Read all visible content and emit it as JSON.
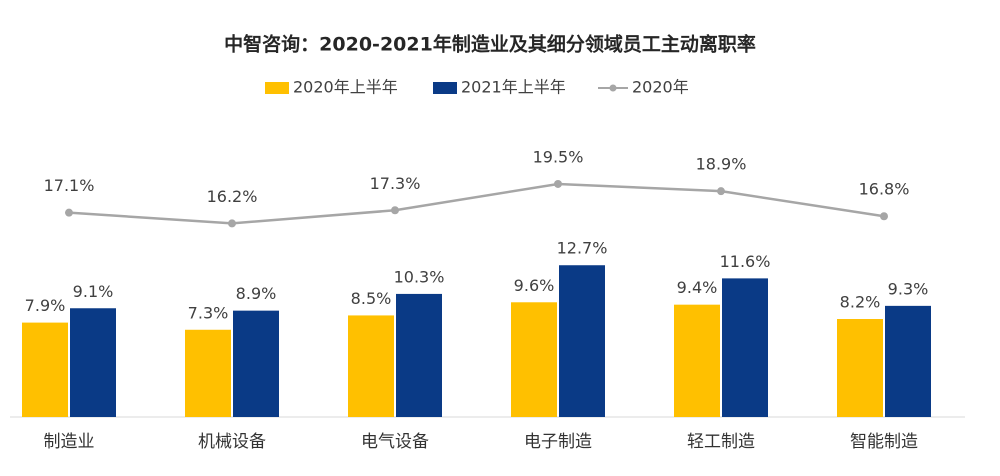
{
  "chart_data": {
    "type": "bar-line",
    "title": "中智咨询：2020-2021年制造业及其细分领域员工主动离职率",
    "categories": [
      "制造业",
      "机械设备",
      "电气设备",
      "电子制造",
      "轻工制造",
      "智能制造"
    ],
    "series": [
      {
        "name": "2020年上半年",
        "type": "bar",
        "color": "#ffc000",
        "values": [
          7.9,
          7.3,
          8.5,
          9.6,
          9.4,
          8.2
        ],
        "value_labels": [
          "7.9%",
          "7.3%",
          "8.5%",
          "9.6%",
          "9.4%",
          "8.2%"
        ]
      },
      {
        "name": "2021年上半年",
        "type": "bar",
        "color": "#0a3a86",
        "values": [
          9.1,
          8.9,
          10.3,
          12.7,
          11.6,
          9.3
        ],
        "value_labels": [
          "9.1%",
          "8.9%",
          "10.3%",
          "12.7%",
          "11.6%",
          "9.3%"
        ]
      },
      {
        "name": "2020年",
        "type": "line",
        "color": "#a6a6a6",
        "values": [
          17.1,
          16.2,
          17.3,
          19.5,
          18.9,
          16.8
        ],
        "value_labels": [
          "17.1%",
          "16.2%",
          "17.3%",
          "19.5%",
          "18.9%",
          "16.8%"
        ]
      }
    ]
  }
}
